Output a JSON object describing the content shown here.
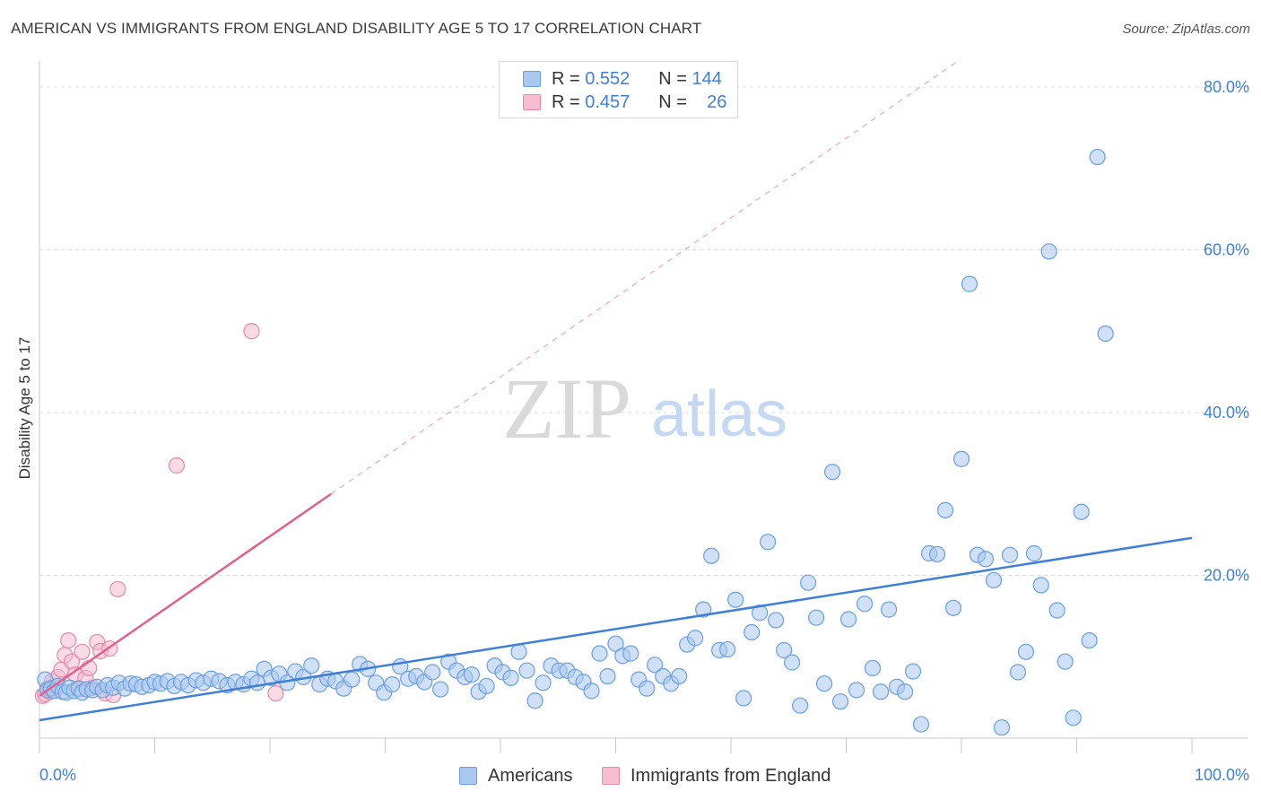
{
  "header": {
    "title": "AMERICAN VS IMMIGRANTS FROM ENGLAND DISABILITY AGE 5 TO 17 CORRELATION CHART",
    "source": "Source: ZipAtlas.com"
  },
  "watermark": {
    "zip": "ZIP",
    "atlas": "atlas"
  },
  "legend_top": [
    {
      "r_label": "R =",
      "r_value": "0.552",
      "n_label": "N =",
      "n_value": "144",
      "color": "#a9c8f0"
    },
    {
      "r_label": "R =",
      "r_value": "0.457",
      "n_label": "N =",
      "n_value": "26",
      "color": "#f6bcd0"
    }
  ],
  "legend_bottom": [
    {
      "label": "Americans",
      "color": "#a9c8f0"
    },
    {
      "label": "Immigrants from England",
      "color": "#f6bcd0"
    }
  ],
  "chart_data": {
    "type": "scatter",
    "xlabel": "",
    "ylabel": "Disability Age 5 to 17",
    "xlim": [
      0,
      100
    ],
    "ylim": [
      0,
      80
    ],
    "x_tick_labels": [
      "0.0%",
      "100.0%"
    ],
    "y_ticks": [
      20,
      40,
      60,
      80
    ],
    "y_tick_labels": [
      "20.0%",
      "40.0%",
      "60.0%",
      "80.0%"
    ],
    "grid": true,
    "colors": {
      "americans": "#3f7fd6",
      "england": "#e0608f",
      "tick_label": "#3f7fd6"
    },
    "series": [
      {
        "name": "Americans",
        "color": "#a9c8f0",
        "stroke": "#6a9fe0",
        "trend": {
          "x": [
            0,
            100
          ],
          "y": [
            2.2,
            24.6
          ]
        },
        "points": [
          [
            0.5,
            7.2
          ],
          [
            0.7,
            5.9
          ],
          [
            1.0,
            6.1
          ],
          [
            1.3,
            5.8
          ],
          [
            1.6,
            6.4
          ],
          [
            2.0,
            5.7
          ],
          [
            2.3,
            5.6
          ],
          [
            2.6,
            6.2
          ],
          [
            3.0,
            5.8
          ],
          [
            3.4,
            6.1
          ],
          [
            3.7,
            5.6
          ],
          [
            4.1,
            6.0
          ],
          [
            4.6,
            5.9
          ],
          [
            5.0,
            6.3
          ],
          [
            5.5,
            5.9
          ],
          [
            5.9,
            6.5
          ],
          [
            6.4,
            6.2
          ],
          [
            6.9,
            6.8
          ],
          [
            7.4,
            6.1
          ],
          [
            7.9,
            6.7
          ],
          [
            8.4,
            6.6
          ],
          [
            8.9,
            6.3
          ],
          [
            9.5,
            6.5
          ],
          [
            10.0,
            6.9
          ],
          [
            10.5,
            6.7
          ],
          [
            11.1,
            7.0
          ],
          [
            11.7,
            6.4
          ],
          [
            12.3,
            6.9
          ],
          [
            12.9,
            6.5
          ],
          [
            13.6,
            7.1
          ],
          [
            14.2,
            6.8
          ],
          [
            14.9,
            7.3
          ],
          [
            15.6,
            7.0
          ],
          [
            16.3,
            6.5
          ],
          [
            17.0,
            6.9
          ],
          [
            17.7,
            6.6
          ],
          [
            18.4,
            7.3
          ],
          [
            18.9,
            6.8
          ],
          [
            19.5,
            8.5
          ],
          [
            20.1,
            7.4
          ],
          [
            20.8,
            7.9
          ],
          [
            21.5,
            6.8
          ],
          [
            22.2,
            8.2
          ],
          [
            22.9,
            7.5
          ],
          [
            23.6,
            8.9
          ],
          [
            24.3,
            6.6
          ],
          [
            25.0,
            7.3
          ],
          [
            25.7,
            7.0
          ],
          [
            26.4,
            6.1
          ],
          [
            27.1,
            7.2
          ],
          [
            27.8,
            9.1
          ],
          [
            28.5,
            8.5
          ],
          [
            29.2,
            6.8
          ],
          [
            29.9,
            5.6
          ],
          [
            30.6,
            6.6
          ],
          [
            31.3,
            8.8
          ],
          [
            32.0,
            7.3
          ],
          [
            32.7,
            7.6
          ],
          [
            33.4,
            6.9
          ],
          [
            34.1,
            8.1
          ],
          [
            34.8,
            6.0
          ],
          [
            35.5,
            9.4
          ],
          [
            36.2,
            8.3
          ],
          [
            36.9,
            7.5
          ],
          [
            37.5,
            7.8
          ],
          [
            38.1,
            5.7
          ],
          [
            38.8,
            6.4
          ],
          [
            39.5,
            8.9
          ],
          [
            40.2,
            8.1
          ],
          [
            40.9,
            7.4
          ],
          [
            41.6,
            10.6
          ],
          [
            42.3,
            8.3
          ],
          [
            43.0,
            4.6
          ],
          [
            43.7,
            6.8
          ],
          [
            44.4,
            8.9
          ],
          [
            45.1,
            8.3
          ],
          [
            45.8,
            8.3
          ],
          [
            46.5,
            7.5
          ],
          [
            47.2,
            6.9
          ],
          [
            47.9,
            5.8
          ],
          [
            48.6,
            10.4
          ],
          [
            49.3,
            7.6
          ],
          [
            50.0,
            11.6
          ],
          [
            50.6,
            10.1
          ],
          [
            51.3,
            10.4
          ],
          [
            52.0,
            7.2
          ],
          [
            52.7,
            6.1
          ],
          [
            53.4,
            9.0
          ],
          [
            54.1,
            7.6
          ],
          [
            54.8,
            6.7
          ],
          [
            55.5,
            7.6
          ],
          [
            56.2,
            11.5
          ],
          [
            56.9,
            12.3
          ],
          [
            57.6,
            15.8
          ],
          [
            58.3,
            22.4
          ],
          [
            59.0,
            10.8
          ],
          [
            59.7,
            10.9
          ],
          [
            60.4,
            17.0
          ],
          [
            61.1,
            4.9
          ],
          [
            61.8,
            13.0
          ],
          [
            62.5,
            15.4
          ],
          [
            63.2,
            24.1
          ],
          [
            63.9,
            14.5
          ],
          [
            64.6,
            10.8
          ],
          [
            65.3,
            9.3
          ],
          [
            66.0,
            4.0
          ],
          [
            66.7,
            19.1
          ],
          [
            67.4,
            14.8
          ],
          [
            68.1,
            6.7
          ],
          [
            68.8,
            32.7
          ],
          [
            69.5,
            4.5
          ],
          [
            70.2,
            14.6
          ],
          [
            70.9,
            5.9
          ],
          [
            71.6,
            16.5
          ],
          [
            72.3,
            8.6
          ],
          [
            73.0,
            5.7
          ],
          [
            73.7,
            15.8
          ],
          [
            74.4,
            6.3
          ],
          [
            75.1,
            5.7
          ],
          [
            75.8,
            8.2
          ],
          [
            76.5,
            1.7
          ],
          [
            77.2,
            22.7
          ],
          [
            77.9,
            22.6
          ],
          [
            78.6,
            28.0
          ],
          [
            79.3,
            16.0
          ],
          [
            80.0,
            34.3
          ],
          [
            80.7,
            55.8
          ],
          [
            81.4,
            22.5
          ],
          [
            82.1,
            22.0
          ],
          [
            82.8,
            19.4
          ],
          [
            83.5,
            1.3
          ],
          [
            84.2,
            22.5
          ],
          [
            84.9,
            8.1
          ],
          [
            85.6,
            10.6
          ],
          [
            86.3,
            22.7
          ],
          [
            86.9,
            18.8
          ],
          [
            87.6,
            59.8
          ],
          [
            88.3,
            15.7
          ],
          [
            89.0,
            9.4
          ],
          [
            89.7,
            2.5
          ],
          [
            90.4,
            27.8
          ],
          [
            91.1,
            12.0
          ],
          [
            91.8,
            71.4
          ],
          [
            92.5,
            49.7
          ]
        ]
      },
      {
        "name": "Immigrants from England",
        "color": "#f6bcd0",
        "stroke": "#e58aab",
        "trend": {
          "x": [
            0,
            25.3
          ],
          "y": [
            5.2,
            30.0
          ]
        },
        "trend_dashed": {
          "x": [
            25.3,
            79.5
          ],
          "y": [
            30.0,
            83.0
          ]
        },
        "points": [
          [
            0.3,
            5.2
          ],
          [
            0.5,
            5.4
          ],
          [
            0.7,
            6.1
          ],
          [
            0.9,
            5.7
          ],
          [
            1.1,
            7.0
          ],
          [
            1.3,
            6.4
          ],
          [
            1.6,
            7.5
          ],
          [
            1.9,
            8.4
          ],
          [
            2.2,
            10.2
          ],
          [
            2.5,
            12.0
          ],
          [
            2.8,
            9.4
          ],
          [
            3.1,
            7.8
          ],
          [
            3.4,
            6.0
          ],
          [
            3.7,
            10.6
          ],
          [
            4.0,
            7.4
          ],
          [
            4.3,
            8.6
          ],
          [
            4.6,
            6.2
          ],
          [
            5.0,
            11.8
          ],
          [
            5.3,
            10.7
          ],
          [
            5.7,
            5.5
          ],
          [
            6.1,
            11.0
          ],
          [
            6.4,
            5.3
          ],
          [
            6.8,
            18.3
          ],
          [
            11.9,
            33.5
          ],
          [
            18.4,
            50.0
          ],
          [
            20.5,
            5.5
          ]
        ]
      }
    ]
  }
}
